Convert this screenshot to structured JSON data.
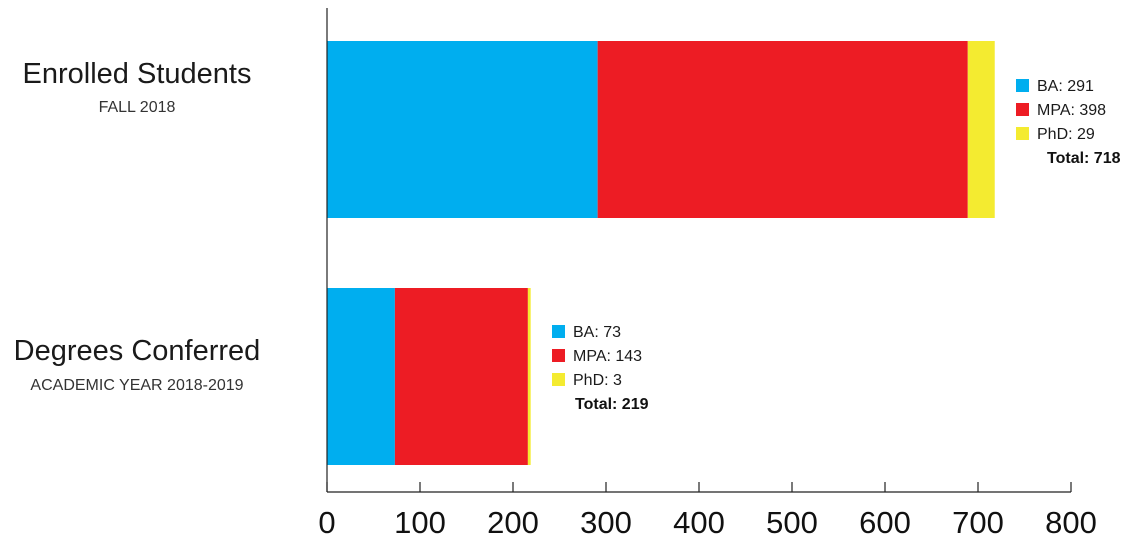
{
  "chart_data": {
    "type": "bar",
    "orientation": "horizontal",
    "stacked": true,
    "xlim": [
      0,
      800
    ],
    "x_ticks": [
      0,
      100,
      200,
      300,
      400,
      500,
      600,
      700,
      800
    ],
    "x_tick_labels": [
      "0",
      "100",
      "200",
      "300",
      "400",
      "500",
      "600",
      "700",
      "800"
    ],
    "grid": false,
    "legend_placement": "right of each bar",
    "colors": {
      "BA": "#00AEEF",
      "MPA": "#ED1C24",
      "PhD": "#F4EB30"
    },
    "categories": [
      {
        "title": "Enrolled Students",
        "subtitle": "FALL 2018",
        "segments": [
          {
            "key": "BA",
            "value": 291,
            "label": "BA: 291"
          },
          {
            "key": "MPA",
            "value": 398,
            "label": "MPA: 398"
          },
          {
            "key": "PhD",
            "value": 29,
            "label": "PhD: 29"
          }
        ],
        "total": 718,
        "total_label": "Total: 718"
      },
      {
        "title": "Degrees Conferred",
        "subtitle": "ACADEMIC YEAR 2018-2019",
        "segments": [
          {
            "key": "BA",
            "value": 73,
            "label": "BA: 73"
          },
          {
            "key": "MPA",
            "value": 143,
            "label": "MPA: 143"
          },
          {
            "key": "PhD",
            "value": 3,
            "label": "PhD: 3"
          }
        ],
        "total": 219,
        "total_label": "Total: 219"
      }
    ]
  }
}
